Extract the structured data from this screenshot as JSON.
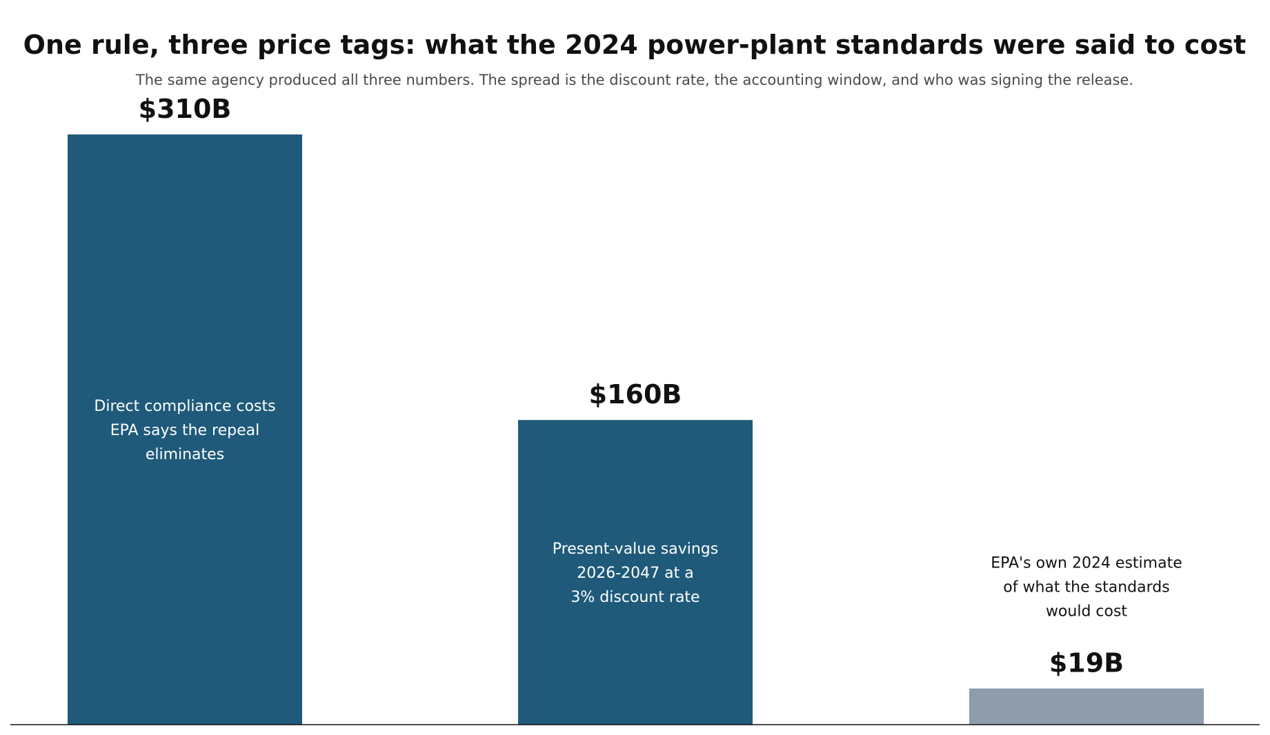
{
  "chart_data": {
    "type": "bar",
    "title": "One rule, three price tags: what the 2024 power-plant standards were said to cost",
    "subtitle": "The same agency produced all three numbers. The spread is the discount rate, the accounting window, and who was signing the release.",
    "xlabel": "",
    "ylabel": "",
    "ylim": [
      0,
      310
    ],
    "grid": false,
    "legend": "none",
    "categories": [
      "Direct compliance costs EPA says the repeal eliminates",
      "Present-value savings 2026-2047 at a 3% discount rate",
      "EPA's own 2024 estimate of what the standards would cost"
    ],
    "values": [
      310,
      160,
      19
    ],
    "value_labels": [
      "$310B",
      "$160B",
      "$19B"
    ],
    "bar_text": [
      [
        "Direct compliance costs",
        "EPA says the repeal",
        "eliminates"
      ],
      [
        "Present-value savings",
        "2026-2047 at a",
        "3% discount rate"
      ],
      [
        "EPA's own 2024 estimate",
        "of what the standards",
        "would cost"
      ]
    ],
    "bar_colors": [
      "#1f5a7a",
      "#1f5a7a",
      "#8e9cab"
    ],
    "inner_text_colors": [
      "#ffffff",
      "#ffffff",
      "#111111"
    ],
    "axis_color": "#111111"
  }
}
